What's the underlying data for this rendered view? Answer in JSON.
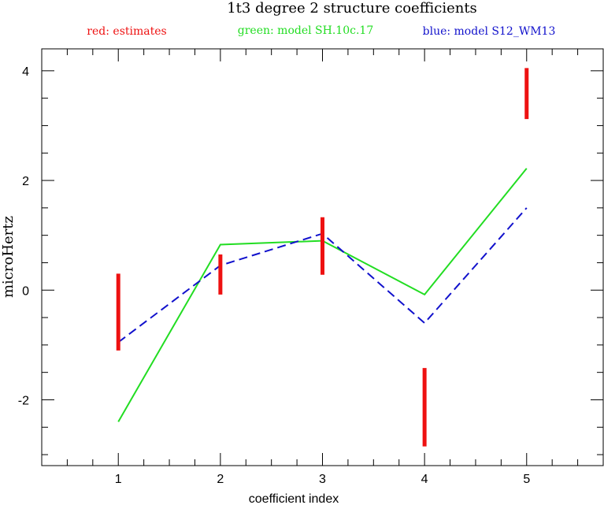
{
  "chart_data": {
    "type": "line",
    "title": "1t3 degree 2 structure coefficients",
    "xlabel": "coefficient index",
    "ylabel": "microHertz",
    "xlim": [
      0.25,
      5.75
    ],
    "ylim": [
      -3.2,
      4.4
    ],
    "xticks": [
      1,
      2,
      3,
      4,
      5
    ],
    "yticks": [
      -2,
      0,
      2,
      4
    ],
    "grid": false,
    "legend_position": "top",
    "legend": [
      {
        "text": "red: estimates",
        "color": "#ee1111"
      },
      {
        "text": "green: model SH.10c.17",
        "color": "#22dd22"
      },
      {
        "text": "blue: model S12_WM13",
        "color": "#1111cc"
      }
    ],
    "estimates": {
      "color": "#ee1111",
      "x": [
        1,
        2,
        3,
        4,
        5
      ],
      "low": [
        -1.1,
        -0.08,
        0.28,
        -2.85,
        3.12
      ],
      "high": [
        0.3,
        0.65,
        1.33,
        -1.42,
        4.05
      ]
    },
    "series": [
      {
        "color": "#22dd22",
        "style": "solid",
        "x": [
          1,
          2,
          3,
          4,
          5
        ],
        "values": [
          -2.4,
          0.83,
          0.9,
          -0.08,
          2.22
        ]
      },
      {
        "color": "#1111cc",
        "style": "dashed",
        "x": [
          1,
          2,
          3,
          4,
          5
        ],
        "values": [
          -0.95,
          0.45,
          1.03,
          -0.6,
          1.5
        ]
      }
    ]
  }
}
